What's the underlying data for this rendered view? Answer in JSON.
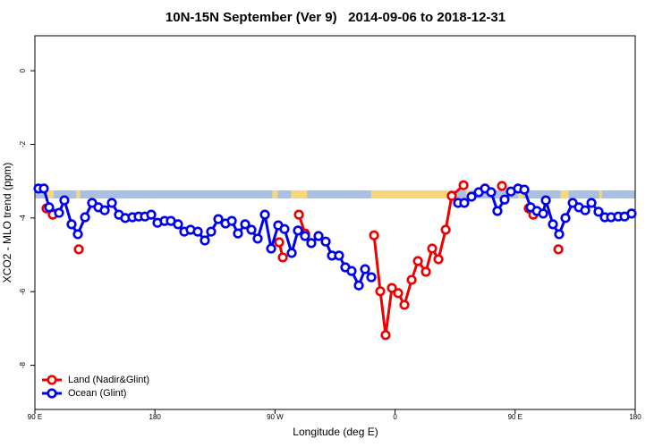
{
  "chart_data": {
    "type": "line",
    "title": "10N-15N September (Ver 9)   2014-09-06 to 2018-12-31",
    "x_label": "Longitude (deg E)",
    "y_label": "XCO2 - MLO trend (ppm)",
    "xlim": [
      90,
      540
    ],
    "ylim": [
      -9.2,
      0.95
    ],
    "xticks": [
      {
        "value": 90,
        "label": "90 E"
      },
      180,
      {
        "value": 270,
        "label": "90 W"
      },
      {
        "value": 360,
        "label": "0"
      },
      {
        "value": 450,
        "label": "90 E"
      },
      {
        "value": 540,
        "label": "180"
      }
    ],
    "yticks": [
      0,
      -2,
      -4,
      -6,
      -8
    ],
    "legend": "bottom-left",
    "strip": {
      "ylim": [
        -3.47,
        -3.25
      ],
      "color": "#aac0e2",
      "land_color": "#f7d77c",
      "land": [
        [
          99,
          104
        ],
        [
          121,
          124
        ],
        [
          268,
          272
        ],
        [
          282,
          294
        ],
        [
          342,
          402
        ],
        [
          413,
          418
        ],
        [
          452,
          456
        ],
        [
          484,
          490
        ],
        [
          513,
          515
        ]
      ]
    },
    "series": [
      {
        "name": "Land (Nadir&Glint)",
        "color": "#ee0000",
        "x": [
          98.7,
          103.4,
          null,
          122.9,
          null,
          273.1,
          275.8,
          null,
          287.9,
          292.5,
          null,
          344.2,
          348.9,
          352.9,
          357.6,
          362.3,
          367.0,
          372.4,
          377.1,
          383.1,
          387.8,
          392.5,
          397.9,
          402.5,
          411.3,
          null,
          440.1,
          null,
          460.2,
          463.6,
          null,
          482.4
        ],
        "values": [
          -3.74,
          -3.91,
          null,
          -4.85,
          null,
          -4.66,
          -5.07,
          null,
          -3.91,
          -4.42,
          null,
          -4.47,
          -5.99,
          -7.18,
          -5.9,
          -6.04,
          -6.36,
          -5.68,
          -5.17,
          -5.46,
          -4.83,
          -5.12,
          -4.32,
          -3.4,
          -3.11,
          null,
          -3.13,
          null,
          -3.74,
          -3.91,
          null,
          -4.85
        ]
      },
      {
        "name": "Ocean (Glint)",
        "color": "#0000ee",
        "x": [
          92.7,
          96.7,
          100.7,
          108.1,
          112.1,
          117.5,
          122.2,
          127.6,
          132.9,
          137.6,
          142.3,
          147.7,
          153.0,
          157.7,
          163.1,
          167.8,
          172.5,
          177.2,
          181.9,
          187.2,
          191.9,
          197.3,
          202.0,
          206.7,
          212.1,
          217.4,
          222.1,
          227.5,
          232.9,
          237.6,
          242.2,
          247.6,
          252.3,
          257.0,
          262.4,
          267.1,
          272.4,
          277.1,
          282.5,
          287.2,
          292.5,
          297.2,
          302.6,
          308.0,
          312.7,
          318.0,
          322.7,
          327.4,
          332.8,
          337.5,
          342.2,
          null,
          407.2,
          411.9,
          417.3,
          422.7,
          427.4,
          432.0,
          436.7,
          442.1,
          446.8,
          452.2,
          456.9,
          461.6,
          466.3,
          471.0,
          473.0,
          478.3,
          483.0,
          487.7,
          493.1,
          497.8,
          502.5,
          507.2,
          512.5,
          517.2,
          521.9,
          527.3,
          532.0,
          537.3
        ],
        "values": [
          -3.2,
          -3.2,
          -3.71,
          -3.86,
          -3.52,
          -4.17,
          -4.44,
          -3.98,
          -3.59,
          -3.71,
          -3.79,
          -3.59,
          -3.91,
          -4.0,
          -3.98,
          -3.96,
          -3.96,
          -3.91,
          -4.13,
          -4.08,
          -4.08,
          -4.17,
          -4.37,
          -4.32,
          -4.37,
          -4.61,
          -4.37,
          -4.03,
          -4.15,
          -4.08,
          -4.42,
          -4.17,
          -4.32,
          -4.56,
          -3.91,
          -4.83,
          -4.2,
          -4.3,
          -4.95,
          -4.34,
          -4.49,
          -4.68,
          -4.49,
          -4.64,
          -5.02,
          -5.02,
          -5.34,
          -5.44,
          -5.83,
          -5.39,
          -5.61,
          null,
          -3.59,
          -3.59,
          -3.42,
          -3.3,
          -3.2,
          -3.3,
          -3.81,
          -3.5,
          -3.28,
          -3.2,
          -3.23,
          -3.71,
          -3.81,
          -3.88,
          -3.52,
          -4.17,
          -4.44,
          -4.0,
          -3.59,
          -3.71,
          -3.79,
          -3.59,
          -3.83,
          -3.98,
          -3.98,
          -3.96,
          -3.96,
          -3.88
        ]
      }
    ]
  }
}
